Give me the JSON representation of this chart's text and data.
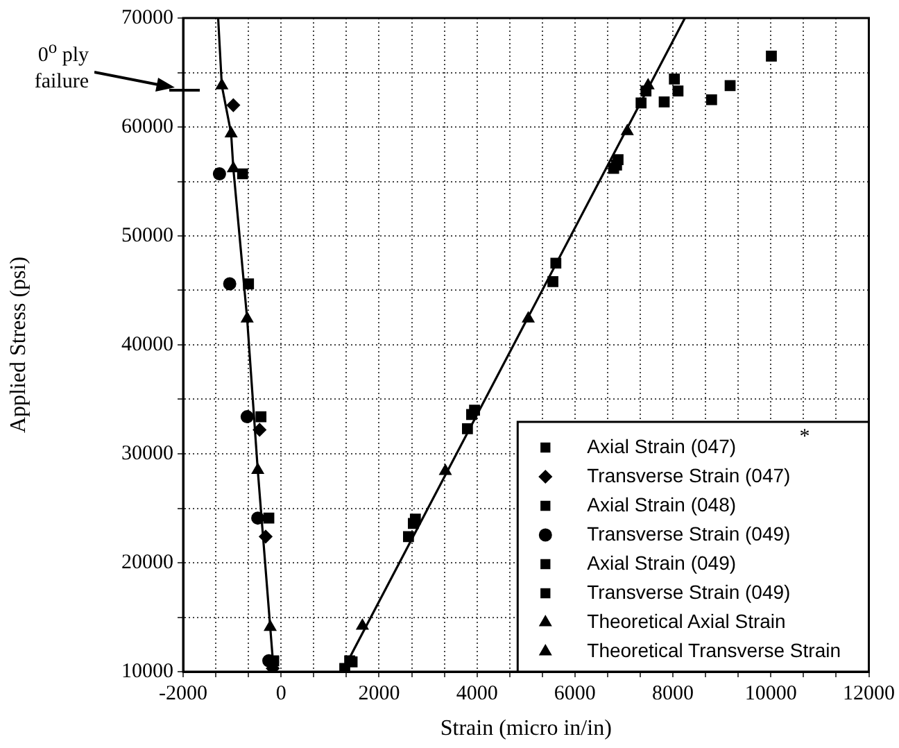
{
  "chart_data": {
    "type": "scatter",
    "xlabel": "Strain (micro in/in)",
    "ylabel": "Applied Stress (psi)",
    "xlim": [
      -2000,
      12000
    ],
    "ylim": [
      10000,
      70000
    ],
    "xticks": [
      -2000,
      {
        "value": -1333,
        "label": null
      },
      {
        "value": -667,
        "label": null
      },
      0,
      {
        "value": 667,
        "label": null
      },
      {
        "value": 1333,
        "label": null
      },
      2000,
      {
        "value": 2667,
        "label": null
      },
      {
        "value": 3333,
        "label": null
      },
      4000,
      {
        "value": 4667,
        "label": null
      },
      {
        "value": 5333,
        "label": null
      },
      6000,
      {
        "value": 6667,
        "label": null
      },
      {
        "value": 7333,
        "label": null
      },
      8000,
      {
        "value": 8667,
        "label": null
      },
      {
        "value": 9333,
        "label": null
      },
      10000,
      {
        "value": 10667,
        "label": null
      },
      {
        "value": 11333,
        "label": null
      },
      12000
    ],
    "yticks": [
      10000,
      {
        "value": 15000,
        "label": null
      },
      20000,
      {
        "value": 25000,
        "label": null
      },
      30000,
      {
        "value": 35000,
        "label": null
      },
      40000,
      {
        "value": 45000,
        "label": null
      },
      50000,
      {
        "value": 55000,
        "label": null
      },
      60000,
      {
        "value": 65000,
        "label": null
      },
      70000
    ],
    "grid": true,
    "legend": "bottom right",
    "annotations": [
      "0$^{o}$ ply failure",
      "*"
    ],
    "series": [
      {
        "name": "Axial Strain (047)",
        "color": "#000000",
        "marker": "square",
        "x": [
          1300,
          2601,
          3805,
          5550,
          6790,
          7822,
          8104
        ],
        "values": [
          10300,
          22400,
          32300,
          45800,
          56200,
          62300,
          63300
        ]
      },
      {
        "name": "Transverse Strain (047)",
        "color": "#000000",
        "marker": "diamond",
        "x": [
          -975,
          -439,
          -315,
          -170
        ],
        "values": [
          62000,
          32200,
          22400,
          10300
        ]
      },
      {
        "name": "Axial Strain (048)",
        "color": "#000000",
        "marker": "square",
        "x": [
          1450,
          2742,
          3890,
          5610,
          6850,
          7350,
          8790,
          10010
        ],
        "values": [
          10900,
          24000,
          33600,
          47500,
          56500,
          62200,
          62500,
          66500
        ]
      },
      {
        "name": "Transverse Strain (049)",
        "color": "#000000",
        "marker": "circle",
        "x": [
          -1258,
          -1049,
          -693,
          -476,
          -250
        ],
        "values": [
          55700,
          45600,
          33400,
          24100,
          11000
        ]
      },
      {
        "name": "Axial Strain (049)",
        "color": "#000000",
        "marker": "square",
        "x": [
          1400,
          2700,
          3950,
          6880,
          7450,
          8030,
          9168
        ],
        "values": [
          11000,
          23600,
          34000,
          57000,
          63300,
          64400,
          63800
        ]
      },
      {
        "name": "Transverse Strain (049)",
        "color": "#000000",
        "marker": "square",
        "x": [
          -786,
          -665,
          -411,
          -250,
          -150
        ],
        "values": [
          55700,
          45600,
          33400,
          24100,
          11000
        ]
      },
      {
        "name": "Theoretical Axial Strain",
        "color": "#000000",
        "marker": "triangle",
        "x": [
          1660,
          3354,
          5047,
          7068,
          7493
        ],
        "values": [
          14200,
          28400,
          42400,
          59600,
          63800
        ]
      },
      {
        "name": "Theoretical Transverse Strain",
        "color": "#000000",
        "marker": "triangle",
        "x": [
          -1210,
          -1020,
          -975,
          -693,
          -476,
          -222
        ],
        "values": [
          63800,
          59400,
          56200,
          42400,
          28500,
          14100
        ]
      },
      {
        "type": "line",
        "color": "#000000",
        "marker": "none",
        "line_style": "solid",
        "x": [
          1250,
          8245
        ],
        "values": [
          10000,
          70000
        ]
      },
      {
        "type": "line",
        "color": "#000000",
        "marker": "none",
        "line_style": "solid",
        "x": [
          -150,
          -222,
          -476,
          -693,
          -975,
          -1020,
          -1210,
          -1285
        ],
        "values": [
          10000,
          14100,
          28500,
          42400,
          56200,
          59400,
          63800,
          70000
        ]
      }
    ]
  }
}
